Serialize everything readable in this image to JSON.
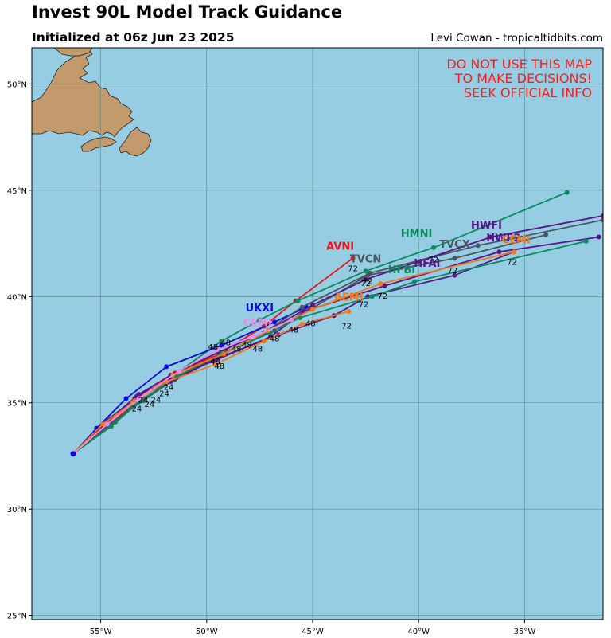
{
  "header": {
    "title": "Invest 90L Model Track Guidance",
    "subtitle": "Initialized at 06z Jun 23 2025",
    "credit": "Levi Cowan - tropicaltidbits.com"
  },
  "warning": {
    "lines": [
      "DO NOT USE THIS MAP",
      "TO MAKE DECISIONS!",
      "SEEK OFFICIAL INFO"
    ],
    "color": "#ff1a1a"
  },
  "map": {
    "ocean_color": "#96cde3",
    "land_color": "#c39a6b",
    "lon_range": [
      -58.25,
      -31.3
    ],
    "lat_range": [
      24.8,
      51.7
    ],
    "lon_ticks": [
      {
        "value": -55,
        "label": "55°W"
      },
      {
        "value": -50,
        "label": "50°W"
      },
      {
        "value": -45,
        "label": "45°W"
      },
      {
        "value": -40,
        "label": "40°W"
      },
      {
        "value": -35,
        "label": "35°W"
      }
    ],
    "lat_ticks": [
      {
        "value": 25,
        "label": "25°N"
      },
      {
        "value": 30,
        "label": "30°N"
      },
      {
        "value": 35,
        "label": "35°N"
      },
      {
        "value": 40,
        "label": "40°N"
      },
      {
        "value": 45,
        "label": "45°N"
      },
      {
        "value": 50,
        "label": "50°N"
      }
    ]
  },
  "tracks": [
    {
      "name": "AVNI",
      "color": "#e8141c",
      "label_hour": "72",
      "label_pos": [
        -43.7,
        42.2
      ],
      "points": [
        [
          -56.3,
          32.6
        ],
        [
          -54.6,
          33.9
        ],
        [
          -53.4,
          35.1
        ],
        [
          -51.5,
          36.4
        ],
        [
          -49.4,
          37.3
        ],
        [
          -47.3,
          38.6
        ],
        [
          -45.8,
          39.8
        ],
        [
          -43.1,
          41.8
        ]
      ]
    },
    {
      "name": "HMNI",
      "color": "#0b8a5e",
      "label_hour": "72",
      "label_pos": [
        -40.1,
        42.8
      ],
      "points": [
        [
          -56.3,
          32.6
        ],
        [
          -54.3,
          34.1
        ],
        [
          -53.1,
          35.3
        ],
        [
          -51.7,
          36.2
        ],
        [
          -49.3,
          37.9
        ],
        [
          -47.5,
          38.9
        ],
        [
          -45.7,
          39.8
        ],
        [
          -42.5,
          41.2
        ],
        [
          -39.3,
          42.3
        ],
        [
          -33.0,
          44.9
        ]
      ]
    },
    {
      "name": "UKXI",
      "color": "#0a0ae0",
      "label_hour": "48",
      "label_pos": [
        -47.5,
        39.3
      ],
      "points": [
        [
          -56.3,
          32.6
        ],
        [
          -55.2,
          33.8
        ],
        [
          -53.8,
          35.2
        ],
        [
          -51.9,
          36.7
        ],
        [
          -49.3,
          37.7
        ],
        [
          -46.8,
          38.8
        ],
        [
          -45.3,
          39.5
        ]
      ]
    },
    {
      "name": "TVCN",
      "color": "#4b5560",
      "label_hour": "72",
      "label_pos": [
        -42.5,
        41.6
      ],
      "points": [
        [
          -56.3,
          32.6
        ],
        [
          -54.4,
          34.1
        ],
        [
          -53.0,
          35.2
        ],
        [
          -51.5,
          36.1
        ],
        [
          -49.4,
          37.2
        ],
        [
          -47.3,
          38.3
        ],
        [
          -45.5,
          39.5
        ],
        [
          -42.3,
          41.1
        ],
        [
          -37.2,
          42.4
        ],
        [
          -31.3,
          43.6
        ]
      ]
    },
    {
      "name": "TVCX",
      "color": "#4b5560",
      "label_hour": "72",
      "label_pos": [
        -38.3,
        42.3
      ],
      "points": [
        [
          -56.3,
          32.6
        ],
        [
          -54.6,
          34.0
        ],
        [
          -53.0,
          35.1
        ],
        [
          -51.4,
          36.2
        ],
        [
          -49.1,
          37.4
        ],
        [
          -46.8,
          38.4
        ],
        [
          -45.1,
          39.4
        ],
        [
          -42.4,
          41.0
        ],
        [
          -38.3,
          41.8
        ],
        [
          -34.0,
          42.9
        ]
      ]
    },
    {
      "name": "HFAI",
      "color": "#5a158a",
      "label_hour": "72",
      "label_pos": [
        -39.6,
        41.4
      ],
      "points": [
        [
          -56.3,
          32.6
        ],
        [
          -54.8,
          34.0
        ],
        [
          -53.3,
          35.3
        ],
        [
          -51.6,
          36.2
        ],
        [
          -49.6,
          37.0
        ],
        [
          -47.0,
          38.1
        ],
        [
          -45.4,
          39.3
        ],
        [
          -41.6,
          40.5
        ],
        [
          -36.2,
          42.1
        ],
        [
          -31.5,
          42.8
        ]
      ]
    },
    {
      "name": "HWFI",
      "color": "#5a158a",
      "label_hour": "72",
      "label_pos": [
        -36.8,
        43.2
      ],
      "points": [
        [
          -56.3,
          32.6
        ],
        [
          -54.6,
          34.2
        ],
        [
          -53.2,
          35.4
        ],
        [
          -51.7,
          36.3
        ],
        [
          -49.4,
          37.4
        ],
        [
          -47.1,
          38.4
        ],
        [
          -45.0,
          39.6
        ],
        [
          -42.5,
          40.8
        ],
        [
          -36.6,
          42.8
        ],
        [
          -31.3,
          43.8
        ]
      ]
    },
    {
      "name": "HWF2",
      "color": "#5a158a",
      "label_hour": "72",
      "label_pos": [
        -36.0,
        42.6
      ],
      "points": [
        [
          -56.3,
          32.6
        ],
        [
          -54.8,
          34.1
        ],
        [
          -53.4,
          35.2
        ],
        [
          -51.7,
          36.0
        ],
        [
          -49.5,
          37.1
        ],
        [
          -46.6,
          38.2
        ],
        [
          -44.0,
          39.1
        ],
        [
          -42.4,
          40.0
        ],
        [
          -38.3,
          41.0
        ],
        [
          -35.5,
          42.1
        ]
      ]
    },
    {
      "name": "HFBI",
      "color": "#0b8a5e",
      "label_hour": "72",
      "label_pos": [
        -40.8,
        41.1
      ],
      "points": [
        [
          -56.3,
          32.6
        ],
        [
          -54.5,
          33.9
        ],
        [
          -53.1,
          35.1
        ],
        [
          -51.5,
          36.2
        ],
        [
          -49.3,
          37.3
        ],
        [
          -47.0,
          38.3
        ],
        [
          -45.6,
          39.0
        ],
        [
          -42.2,
          40.0
        ],
        [
          -40.2,
          40.7
        ],
        [
          -32.1,
          42.6
        ]
      ]
    },
    {
      "name": "AEMI",
      "color": "#f07818",
      "label_hour": "72",
      "label_pos": [
        -43.3,
        39.8
      ],
      "points": [
        [
          -56.3,
          32.6
        ],
        [
          -54.9,
          34.0
        ],
        [
          -53.5,
          35.0
        ],
        [
          -51.9,
          36.0
        ],
        [
          -49.6,
          36.8
        ],
        [
          -47.3,
          37.9
        ],
        [
          -45.5,
          38.7
        ],
        [
          -43.3,
          39.3
        ]
      ]
    },
    {
      "name": "CEMI",
      "color": "#f07818",
      "label_hour": "72",
      "label_pos": [
        -35.4,
        42.5
      ],
      "points": [
        [
          -56.3,
          32.6
        ],
        [
          -54.7,
          34.0
        ],
        [
          -53.4,
          35.1
        ],
        [
          -51.6,
          36.3
        ],
        [
          -49.2,
          37.3
        ],
        [
          -47.1,
          38.4
        ],
        [
          -45.0,
          39.4
        ],
        [
          -41.8,
          40.6
        ],
        [
          -35.5,
          42.1
        ]
      ]
    },
    {
      "name": "CEMI",
      "color": "#e88ce8",
      "label_hour": "48",
      "label_pos": [
        -47.6,
        38.6
      ],
      "points": [
        [
          -56.3,
          32.6
        ],
        [
          -54.7,
          34.0
        ],
        [
          -53.2,
          35.2
        ],
        [
          -51.3,
          36.5
        ],
        [
          -49.5,
          37.5
        ],
        [
          -47.8,
          38.1
        ],
        [
          -46.0,
          38.9
        ]
      ]
    }
  ],
  "hour_marks": [
    {
      "text": "24",
      "at": [
        -53.3,
        34.6
      ]
    },
    {
      "text": "24",
      "at": [
        -52.7,
        34.8
      ]
    },
    {
      "text": "24",
      "at": [
        -52.0,
        35.3
      ]
    },
    {
      "text": "24",
      "at": [
        -51.8,
        35.6
      ]
    },
    {
      "text": "24",
      "at": [
        -53.0,
        35.0
      ]
    },
    {
      "text": "24",
      "at": [
        -52.4,
        35.0
      ]
    },
    {
      "text": "48",
      "at": [
        -49.4,
        36.6
      ]
    },
    {
      "text": "48",
      "at": [
        -49.6,
        36.8
      ]
    },
    {
      "text": "48",
      "at": [
        -48.6,
        37.4
      ]
    },
    {
      "text": "48",
      "at": [
        -48.1,
        37.6
      ]
    },
    {
      "text": "48",
      "at": [
        -47.6,
        37.4
      ]
    },
    {
      "text": "48",
      "at": [
        -46.8,
        37.9
      ]
    },
    {
      "text": "48",
      "at": [
        -45.9,
        38.3
      ]
    },
    {
      "text": "48",
      "at": [
        -45.1,
        38.6
      ]
    },
    {
      "text": "48",
      "at": [
        -49.1,
        37.7
      ]
    },
    {
      "text": "48",
      "at": [
        -49.7,
        37.5
      ]
    },
    {
      "text": "72",
      "at": [
        -43.1,
        41.2
      ]
    },
    {
      "text": "72",
      "at": [
        -42.5,
        40.5
      ]
    },
    {
      "text": "72",
      "at": [
        -42.6,
        39.5
      ]
    },
    {
      "text": "72",
      "at": [
        -41.7,
        39.9
      ]
    },
    {
      "text": "72",
      "at": [
        -43.4,
        38.5
      ]
    },
    {
      "text": "72",
      "at": [
        -39.3,
        41.6
      ]
    },
    {
      "text": "72",
      "at": [
        -38.4,
        41.1
      ]
    },
    {
      "text": "72",
      "at": [
        -35.6,
        41.5
      ]
    },
    {
      "text": "72",
      "at": [
        -42.4,
        40.6
      ]
    }
  ]
}
